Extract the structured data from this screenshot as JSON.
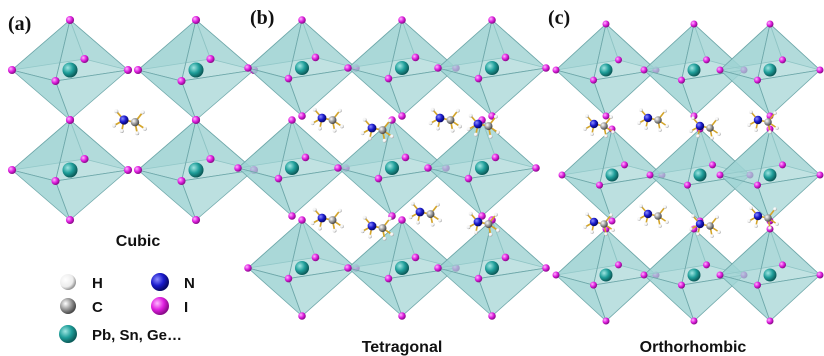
{
  "panels": [
    {
      "label": "(a)",
      "caption": "Cubic"
    },
    {
      "label": "(b)",
      "caption": "Tetragonal"
    },
    {
      "label": "(c)",
      "caption": "Orthorhombic"
    }
  ],
  "legend": [
    {
      "symbol": "H",
      "color": "#f2f2f2"
    },
    {
      "symbol": "N",
      "color": "#1a1acc"
    },
    {
      "symbol": "C",
      "color": "#9a9a9a"
    },
    {
      "symbol": "I",
      "color": "#e020e0"
    },
    {
      "symbol": "Pb, Sn, Ge…",
      "color": "#1f9e9a"
    }
  ],
  "colors": {
    "octahedron_fill": "#9fd3d3",
    "octahedron_edge": "#6fa8aa",
    "iodine": "#e020e0",
    "metal": "#1f9e9a",
    "nitrogen": "#1a1acc",
    "carbon": "#9a9a9a",
    "hydrogen": "#f2f2f2",
    "bond": "#d4a52a"
  }
}
